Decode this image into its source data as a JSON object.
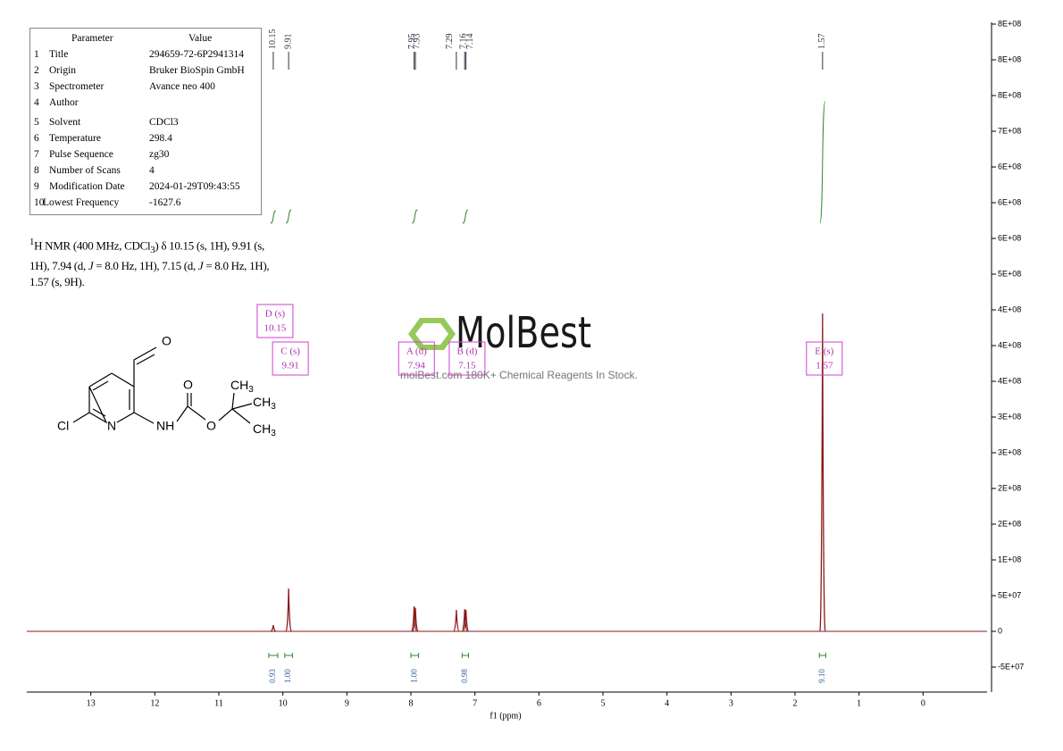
{
  "parameters": {
    "header": [
      "Parameter",
      "Value"
    ],
    "rows": [
      [
        "1",
        "Title",
        "294659-72-6P2941314"
      ],
      [
        "2",
        "Origin",
        "Bruker BioSpin GmbH"
      ],
      [
        "3",
        "Spectrometer",
        "Avance neo 400"
      ],
      [
        "4",
        "Author"
      ],
      [
        "5",
        "Solvent",
        "CDCl3"
      ],
      [
        "6",
        "Temperature",
        "298.4"
      ],
      [
        "7",
        "Pulse Sequence",
        "zg30"
      ],
      [
        "8",
        "Number of Scans",
        "4"
      ],
      [
        "9",
        "Modification Date",
        "2024-01-29T09:43:55"
      ],
      [
        "10",
        "Lowest Frequency",
        "-1627.6"
      ]
    ]
  },
  "description": [
    "1",
    "H NMR (400 MHz, CDCl",
    "3",
    ") δ 10.15 (s, 1H), 9.91 (s, 1H), 7.94 (d, ",
    "J",
    " = 8.0 Hz, 1H), 7.15 (d, ",
    "J",
    " = 8.0 Hz, 1H), 1.57 (s, 9H)."
  ],
  "structure": {
    "atoms": [
      "O",
      "O",
      "Cl",
      "N",
      "NH",
      "O",
      "CH",
      "3",
      "CH",
      "3",
      "CH",
      "3"
    ]
  },
  "watermark": {
    "brand": "MolBest",
    "tagline": "molBest.com 180K+ Chemical Reagents In Stock."
  },
  "chart_data": {
    "type": "nmr",
    "xlabel": "f1 (ppm)",
    "xlim": [
      14,
      -1
    ],
    "xticks": [
      13,
      12,
      11,
      10,
      9,
      8,
      7,
      6,
      5,
      4,
      3,
      2,
      1,
      0
    ],
    "ylim": [
      -85000000,
      852500000
    ],
    "yticks": [
      {
        "value": -50000000,
        "label": "-5E+07"
      },
      0,
      {
        "value": 50000000,
        "label": "5E+07"
      },
      {
        "value": 100000000,
        "label": "1E+08"
      },
      {
        "value": 150000000,
        "label": "2E+08"
      },
      {
        "value": 200000000,
        "label": "2E+08"
      },
      {
        "value": 250000000,
        "label": "3E+08"
      },
      {
        "value": 300000000,
        "label": "3E+08"
      },
      {
        "value": 350000000,
        "label": "4E+08"
      },
      {
        "value": 400000000,
        "label": "4E+08"
      },
      {
        "value": 450000000,
        "label": "4E+08"
      },
      {
        "value": 500000000,
        "label": "5E+08"
      },
      {
        "value": 550000000,
        "label": "6E+08"
      },
      {
        "value": 600000000,
        "label": "6E+08"
      },
      {
        "value": 650000000,
        "label": "6E+08"
      },
      {
        "value": 700000000,
        "label": "7E+08"
      },
      {
        "value": 750000000,
        "label": "8E+08"
      },
      {
        "value": 800000000,
        "label": "8E+08"
      },
      {
        "value": 850000000,
        "label": "8E+08"
      }
    ],
    "color": "#8b1a1a",
    "peaks": {
      "x": [
        10.15,
        9.91,
        7.95,
        7.93,
        7.29,
        7.16,
        7.14,
        1.57
      ],
      "values": [
        8750000,
        60000000,
        35000000,
        33000000,
        30000000,
        31000000,
        30000000,
        445000000
      ]
    },
    "integrals": {
      "color": "#2e8b2e",
      "ranges": [
        [
          10.22,
          10.08
        ],
        [
          9.97,
          9.85
        ],
        [
          8.0,
          7.88
        ],
        [
          7.2,
          7.1
        ],
        [
          1.62,
          1.52
        ]
      ],
      "values": [
        0.93,
        1,
        1,
        0.98,
        9.1
      ],
      "value_labels": [
        "0.93",
        "1.00",
        "1.00",
        "0.98",
        "9.10"
      ]
    },
    "multiplets": [
      {
        "label": "D (s)",
        "shift": 10.15
      },
      {
        "label": "C (s)",
        "shift": 9.91
      },
      {
        "label": "A (d)",
        "shift": 7.94
      },
      {
        "label": "B (d)",
        "shift": 7.15
      },
      {
        "label": "E (s)",
        "shift": 1.57
      }
    ]
  }
}
